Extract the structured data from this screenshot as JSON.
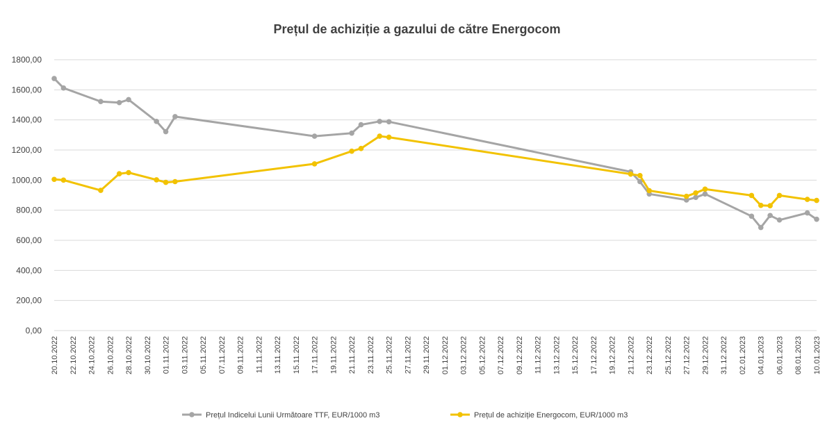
{
  "chart_data": {
    "type": "line",
    "title": "Prețul de achiziție a gazului de către Energocom",
    "xlabel": "",
    "ylabel": "",
    "ylim": [
      0,
      1800
    ],
    "yticks": [
      "0,00",
      "200,00",
      "400,00",
      "600,00",
      "800,00",
      "1000,00",
      "1200,00",
      "1400,00",
      "1600,00",
      "1800,00"
    ],
    "x_range": [
      "2022-10-20",
      "2023-01-10"
    ],
    "xticks": [
      "20.10.2022",
      "22.10.2022",
      "24.10.2022",
      "26.10.2022",
      "28.10.2022",
      "30.10.2022",
      "01.11.2022",
      "03.11.2022",
      "05.11.2022",
      "07.11.2022",
      "09.11.2022",
      "11.11.2022",
      "13.11.2022",
      "15.11.2022",
      "17.11.2022",
      "19.11.2022",
      "21.11.2022",
      "23.11.2022",
      "25.11.2022",
      "27.11.2022",
      "29.11.2022",
      "01.12.2022",
      "03.12.2022",
      "05.12.2022",
      "07.12.2022",
      "09.12.2022",
      "11.12.2022",
      "13.12.2022",
      "15.12.2022",
      "17.12.2022",
      "19.12.2022",
      "21.12.2022",
      "23.12.2022",
      "25.12.2022",
      "27.12.2022",
      "29.12.2022",
      "31.12.2022",
      "02.01.2023",
      "04.01.2023",
      "06.01.2023",
      "08.01.2023",
      "10.01.2023"
    ],
    "grid": true,
    "legend_position": "bottom",
    "series": [
      {
        "name": "Prețul Indicelui Lunii Următoare TTF,  EUR/1000 m3",
        "color": "#a5a5a5",
        "points": [
          [
            "2022-10-20",
            1675
          ],
          [
            "2022-10-21",
            1612
          ],
          [
            "2022-10-25",
            1522
          ],
          [
            "2022-10-27",
            1515
          ],
          [
            "2022-10-28",
            1535
          ],
          [
            "2022-10-31",
            1390
          ],
          [
            "2022-11-01",
            1322
          ],
          [
            "2022-11-02",
            1422
          ],
          [
            "2022-11-17",
            1292
          ],
          [
            "2022-11-21",
            1312
          ],
          [
            "2022-11-22",
            1368
          ],
          [
            "2022-11-24",
            1390
          ],
          [
            "2022-11-25",
            1388
          ],
          [
            "2022-12-21",
            1055
          ],
          [
            "2022-12-22",
            990
          ],
          [
            "2022-12-23",
            908
          ],
          [
            "2022-12-27",
            868
          ],
          [
            "2022-12-28",
            885
          ],
          [
            "2022-12-29",
            908
          ],
          [
            "2023-01-03",
            760
          ],
          [
            "2023-01-04",
            685
          ],
          [
            "2023-01-05",
            765
          ],
          [
            "2023-01-06",
            735
          ],
          [
            "2023-01-09",
            782
          ],
          [
            "2023-01-10",
            740
          ]
        ]
      },
      {
        "name": "Prețul de achiziție Energocom, EUR/1000 m3",
        "color": "#f2c200",
        "points": [
          [
            "2022-10-20",
            1005
          ],
          [
            "2022-10-21",
            1000
          ],
          [
            "2022-10-25",
            932
          ],
          [
            "2022-10-27",
            1042
          ],
          [
            "2022-10-28",
            1050
          ],
          [
            "2022-10-31",
            1002
          ],
          [
            "2022-11-01",
            985
          ],
          [
            "2022-11-02",
            990
          ],
          [
            "2022-11-17",
            1108
          ],
          [
            "2022-11-21",
            1192
          ],
          [
            "2022-11-22",
            1210
          ],
          [
            "2022-11-24",
            1292
          ],
          [
            "2022-11-25",
            1285
          ],
          [
            "2022-12-21",
            1040
          ],
          [
            "2022-12-22",
            1030
          ],
          [
            "2022-12-23",
            930
          ],
          [
            "2022-12-27",
            892
          ],
          [
            "2022-12-28",
            915
          ],
          [
            "2022-12-29",
            940
          ],
          [
            "2023-01-03",
            898
          ],
          [
            "2023-01-04",
            832
          ],
          [
            "2023-01-05",
            830
          ],
          [
            "2023-01-06",
            898
          ],
          [
            "2023-01-09",
            872
          ],
          [
            "2023-01-10",
            865
          ]
        ]
      }
    ]
  }
}
